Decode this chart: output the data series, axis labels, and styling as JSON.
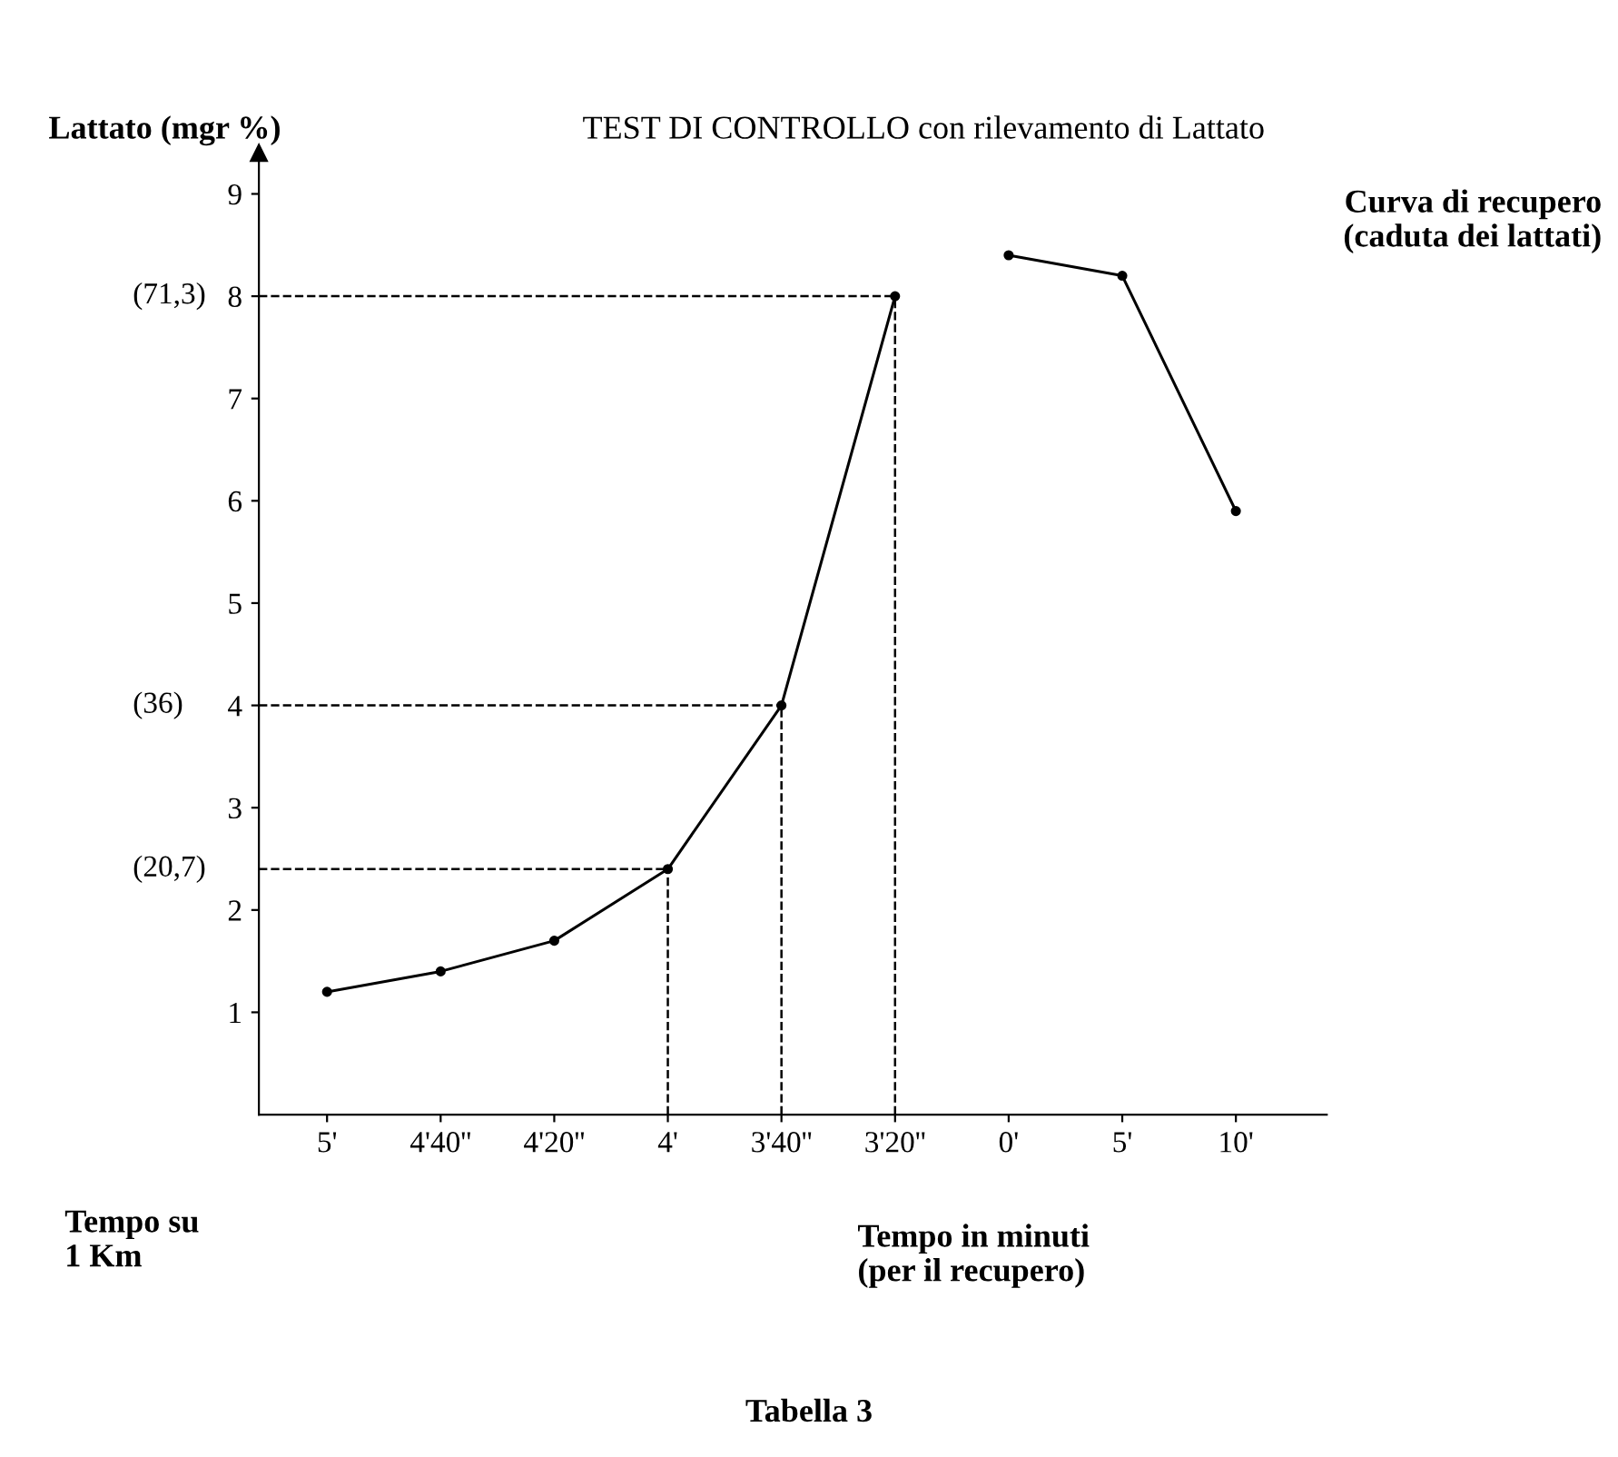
{
  "chart_data": {
    "type": "line",
    "title": "TEST DI CONTROLLO con rilevamento di Lattato",
    "ylabel": "Lattato (mgr %)",
    "categories": [
      "5'",
      "4'40''",
      "4'20''",
      "4'",
      "3'40''",
      "3'20''",
      "0'",
      "5'",
      "10'"
    ],
    "series": [
      {
        "color": "#000000",
        "values": [
          1.2,
          1.4,
          1.7,
          2.4,
          4.0,
          8.0,
          null,
          null,
          null
        ]
      },
      {
        "color": "#000000",
        "values": [
          null,
          null,
          null,
          null,
          null,
          null,
          8.4,
          8.2,
          5.9
        ]
      }
    ],
    "ylim": [
      0,
      9.4
    ],
    "yticks": [
      1,
      2,
      3,
      4,
      5,
      6,
      7,
      8,
      9
    ],
    "grid": false,
    "legend": false,
    "marker": "circle",
    "line_style": "solid",
    "ref_lines": [
      {
        "axis": "y",
        "value": 2.4,
        "line_style": "dashed"
      },
      {
        "axis": "y",
        "value": 4.0,
        "line_style": "dashed"
      },
      {
        "axis": "y",
        "value": 8.0,
        "line_style": "dashed"
      },
      {
        "axis": "x",
        "value": "4'",
        "line_style": "dashed"
      },
      {
        "axis": "x",
        "value": "3'40''",
        "line_style": "dashed"
      },
      {
        "axis": "x",
        "value": "3'20''",
        "line_style": "dashed"
      }
    ],
    "annotations": [
      "(20,7)",
      "(36)",
      "(71,3)",
      "Curva di recupero\n(caduta dei lattati)",
      "Tempo su\n1 Km",
      "Tempo in minuti\n(per il recupero)",
      "Tabella 3"
    ]
  }
}
